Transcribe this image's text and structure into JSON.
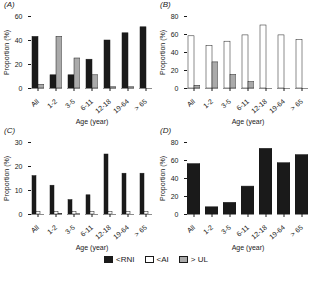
{
  "chart_data": [
    {
      "type": "bar",
      "title": "(A)",
      "xlabel": "Age (year)",
      "ylabel": "Proportion (%)",
      "categories": [
        "All",
        "1-2",
        "3-5",
        "6-11",
        "12-18",
        "19-64",
        "> 65"
      ],
      "series": [
        {
          "name": "<RNI",
          "color": "#1a1a1a",
          "values": [
            43,
            11,
            11,
            24,
            40,
            46,
            51
          ]
        },
        {
          "name": "> UL",
          "color": "#aaaaaa",
          "values": [
            3,
            43,
            25,
            11,
            1,
            1,
            0
          ]
        }
      ],
      "ylim": [
        0,
        60
      ],
      "yticks": [
        0,
        20,
        40,
        60
      ]
    },
    {
      "type": "bar",
      "title": "(B)",
      "xlabel": "Age (year)",
      "ylabel": "Proportion (%)",
      "categories": [
        "All",
        "1-2",
        "3-5",
        "6-11",
        "12-18",
        "19-64",
        "> 65"
      ],
      "series": [
        {
          "name": "<AI",
          "color": "#ffffff",
          "values": [
            58,
            47,
            52,
            59,
            70,
            59,
            54
          ]
        },
        {
          "name": "> UL",
          "color": "#aaaaaa",
          "values": [
            3,
            29,
            15,
            7,
            0,
            0,
            0
          ]
        }
      ],
      "ylim": [
        0,
        80
      ],
      "yticks": [
        0,
        20,
        40,
        60,
        80
      ]
    },
    {
      "type": "bar",
      "title": "(C)",
      "xlabel": "Age (year)",
      "ylabel": "Proportion (%)",
      "categories": [
        "All",
        "1-2",
        "3-5",
        "6-11",
        "12-18",
        "19-64",
        "> 65"
      ],
      "series": [
        {
          "name": "<RNI",
          "color": "#1a1a1a",
          "values": [
            16,
            12,
            6,
            8,
            25,
            17,
            17
          ]
        },
        {
          "name": "<AI",
          "color": "#ffffff",
          "values": [
            1,
            1,
            1,
            1,
            1,
            1,
            1
          ]
        },
        {
          "name": "> UL",
          "color": "#aaaaaa",
          "values": [
            0,
            0.2,
            0.1,
            0,
            0,
            0,
            0
          ]
        }
      ],
      "ylim": [
        0,
        30
      ],
      "yticks": [
        0,
        10,
        20,
        30
      ],
      "legend": "bottom"
    },
    {
      "type": "bar",
      "title": "(D)",
      "xlabel": "Age (year)",
      "ylabel": "Proportion (%)",
      "categories": [
        "All",
        "1-2",
        "3-5",
        "6-11",
        "12-18",
        "19-64",
        "> 65"
      ],
      "series": [
        {
          "name": "<RNI",
          "color": "#1a1a1a",
          "values": [
            56,
            8,
            13,
            31,
            73,
            57,
            66
          ]
        }
      ],
      "ylim": [
        0,
        80
      ],
      "yticks": [
        0,
        20,
        40,
        60,
        80
      ]
    }
  ]
}
